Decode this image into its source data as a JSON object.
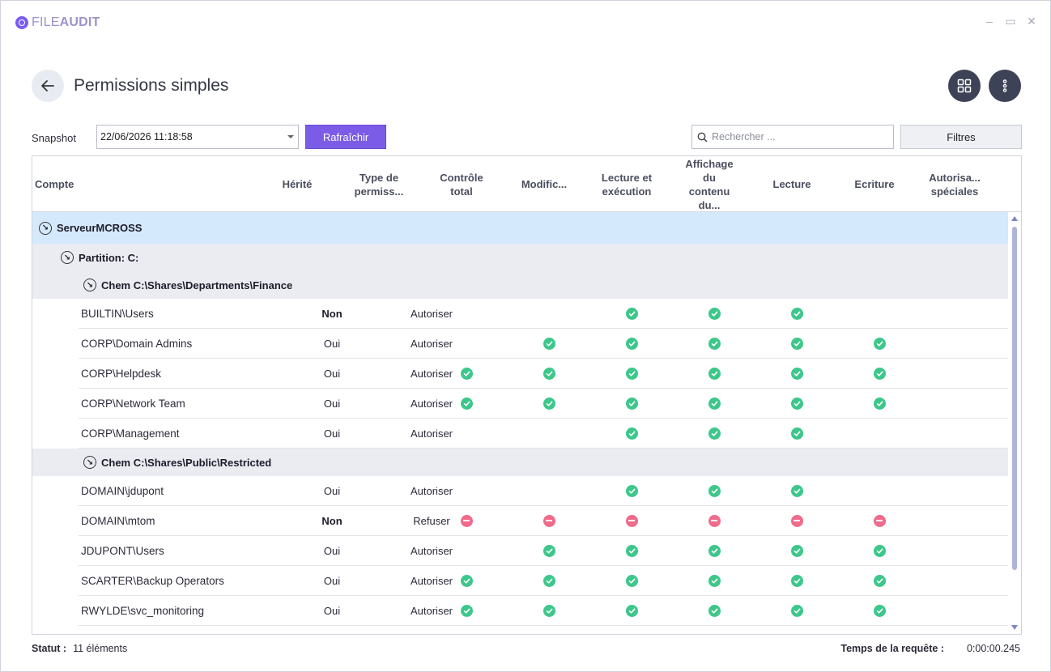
{
  "app": {
    "logo_light": "FILE",
    "logo_bold": "AUDIT"
  },
  "window_controls": {
    "minimize": "–",
    "restore": "▭",
    "close": "✕"
  },
  "header": {
    "title": "Permissions simples",
    "back_icon": "arrow-left-icon",
    "grid_icon": "grid-icon",
    "more_icon": "more-vertical-icon"
  },
  "toolbar": {
    "snapshot_label": "Snapshot",
    "snapshot_value": "22/06/2026 11:18:58",
    "refresh_label": "Rafraîchir",
    "search_placeholder": "Rechercher ...",
    "filters_label": "Filtres"
  },
  "columns": [
    "Compte",
    "Hérité",
    "Type de permiss...",
    "Contrôle total",
    "Modific...",
    "Lecture et exécution",
    "Affichage du contenu du...",
    "Lecture",
    "Ecriture",
    "Autorisa... spéciales"
  ],
  "server": {
    "prefix": "Serveur",
    "name": "MCROSS"
  },
  "partition": "Partition: C:",
  "groups": [
    {
      "path": "Chem C:\\Shares\\Departments\\Finance",
      "rows": [
        {
          "account": "BUILTIN\\Users",
          "inherited": "Non",
          "type": "Autoriser",
          "perms": [
            "",
            "",
            "ok",
            "ok",
            "ok",
            "",
            ""
          ]
        },
        {
          "account": "CORP\\Domain Admins",
          "inherited": "Oui",
          "type": "Autoriser",
          "perms": [
            "",
            "ok",
            "ok",
            "ok",
            "ok",
            "ok",
            ""
          ]
        },
        {
          "account": "CORP\\Helpdesk",
          "inherited": "Oui",
          "type": "Autoriser",
          "perms": [
            "ok",
            "ok",
            "ok",
            "ok",
            "ok",
            "ok",
            ""
          ]
        },
        {
          "account": "CORP\\Network Team",
          "inherited": "Oui",
          "type": "Autoriser",
          "perms": [
            "ok",
            "ok",
            "ok",
            "ok",
            "ok",
            "ok",
            ""
          ]
        },
        {
          "account": "CORP\\Management",
          "inherited": "Oui",
          "type": "Autoriser",
          "perms": [
            "",
            "",
            "ok",
            "ok",
            "ok",
            "",
            ""
          ]
        }
      ]
    },
    {
      "path": "Chem C:\\Shares\\Public\\Restricted",
      "rows": [
        {
          "account": "DOMAIN\\jdupont",
          "inherited": "Oui",
          "type": "Autoriser",
          "perms": [
            "",
            "",
            "ok",
            "ok",
            "ok",
            "",
            ""
          ]
        },
        {
          "account": "DOMAIN\\mtom",
          "inherited": "Non",
          "type": "Refuser",
          "perms": [
            "no",
            "no",
            "no",
            "no",
            "no",
            "no",
            ""
          ]
        },
        {
          "account": "JDUPONT\\Users",
          "inherited": "Oui",
          "type": "Autoriser",
          "perms": [
            "",
            "ok",
            "ok",
            "ok",
            "ok",
            "ok",
            ""
          ]
        },
        {
          "account": "SCARTER\\Backup Operators",
          "inherited": "Oui",
          "type": "Autoriser",
          "perms": [
            "ok",
            "ok",
            "ok",
            "ok",
            "ok",
            "ok",
            ""
          ]
        },
        {
          "account": "RWYLDE\\svc_monitoring",
          "inherited": "Oui",
          "type": "Autoriser",
          "perms": [
            "ok",
            "ok",
            "ok",
            "ok",
            "ok",
            "ok",
            ""
          ]
        }
      ]
    }
  ],
  "status": {
    "label": "Statut :",
    "value": "11 éléments"
  },
  "query_time": {
    "label": "Temps de la requête :",
    "value": "0:00:00.245"
  },
  "colors": {
    "accent": "#7b5ce6",
    "allow": "#3dc78b",
    "deny": "#ef6b8b",
    "server_row": "#d4e9fb",
    "group_row": "#eaecf2"
  }
}
